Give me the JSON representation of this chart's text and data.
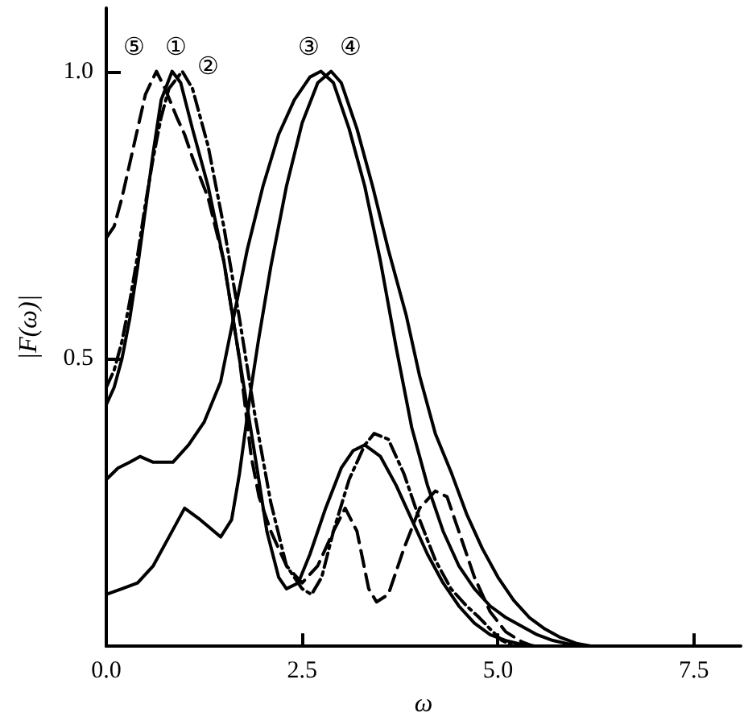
{
  "chart_data": {
    "type": "line",
    "xlabel": "ω",
    "ylabel": "|F(ω)|",
    "xlim": [
      0,
      8.1
    ],
    "xticks": [
      {
        "value": 0,
        "label": "0.0"
      },
      2.5,
      {
        "value": 5,
        "label": "5.0"
      },
      7.5
    ],
    "ylim": [
      0,
      1.11
    ],
    "yticks": [
      0.5,
      {
        "value": 1,
        "label": "1.0"
      }
    ],
    "grid": false,
    "legend": false,
    "marker": "none",
    "series": [
      {
        "name": "①",
        "color": "#000000",
        "line_style": "solid",
        "x": [
          0,
          0.1,
          0.2,
          0.3,
          0.4,
          0.5,
          0.6,
          0.7,
          0.84,
          0.95,
          1.1,
          1.3,
          1.5,
          1.7,
          1.9,
          2.05,
          2.2,
          2.3,
          2.45,
          2.6,
          2.8,
          3.0,
          3.15,
          3.3,
          3.5,
          3.7,
          3.9,
          4.1,
          4.3,
          4.5,
          4.7,
          4.9,
          5.1,
          5.3,
          5.5
        ],
        "values": [
          0.42,
          0.45,
          0.5,
          0.57,
          0.66,
          0.76,
          0.86,
          0.95,
          1.0,
          0.98,
          0.9,
          0.8,
          0.67,
          0.5,
          0.33,
          0.2,
          0.12,
          0.1,
          0.11,
          0.16,
          0.24,
          0.31,
          0.34,
          0.35,
          0.33,
          0.28,
          0.22,
          0.16,
          0.11,
          0.07,
          0.04,
          0.02,
          0.01,
          0.003,
          0
        ]
      },
      {
        "name": "②",
        "color": "#000000",
        "line_style": "dashdot",
        "x": [
          0,
          0.1,
          0.2,
          0.3,
          0.4,
          0.5,
          0.6,
          0.7,
          0.8,
          0.97,
          1.1,
          1.3,
          1.5,
          1.7,
          1.9,
          2.1,
          2.3,
          2.5,
          2.62,
          2.75,
          2.9,
          3.1,
          3.3,
          3.42,
          3.6,
          3.8,
          4.0,
          4.2,
          4.4,
          4.6,
          4.76,
          4.9,
          5.05,
          5.2
        ],
        "values": [
          0.45,
          0.48,
          0.53,
          0.6,
          0.68,
          0.77,
          0.85,
          0.92,
          0.97,
          1.0,
          0.97,
          0.87,
          0.73,
          0.57,
          0.4,
          0.25,
          0.14,
          0.1,
          0.09,
          0.12,
          0.2,
          0.29,
          0.35,
          0.37,
          0.36,
          0.3,
          0.22,
          0.15,
          0.1,
          0.07,
          0.05,
          0.03,
          0.01,
          0
        ]
      },
      {
        "name": "③",
        "color": "#000000",
        "line_style": "solid",
        "x": [
          0,
          0.15,
          0.3,
          0.43,
          0.6,
          0.85,
          1.05,
          1.25,
          1.46,
          1.63,
          1.8,
          2.0,
          2.2,
          2.4,
          2.6,
          2.74,
          2.9,
          3.1,
          3.3,
          3.5,
          3.7,
          3.9,
          4.1,
          4.3,
          4.5,
          4.7,
          4.9,
          5.1,
          5.3,
          5.5,
          5.7,
          5.9,
          6.1
        ],
        "values": [
          0.29,
          0.31,
          0.32,
          0.33,
          0.32,
          0.32,
          0.35,
          0.39,
          0.46,
          0.575,
          0.69,
          0.8,
          0.89,
          0.95,
          0.99,
          1.0,
          0.98,
          0.9,
          0.8,
          0.67,
          0.52,
          0.38,
          0.28,
          0.2,
          0.14,
          0.1,
          0.07,
          0.05,
          0.035,
          0.02,
          0.01,
          0.004,
          0
        ]
      },
      {
        "name": "④",
        "color": "#000000",
        "line_style": "solid",
        "x": [
          0,
          0.2,
          0.4,
          0.6,
          0.8,
          1.0,
          1.2,
          1.46,
          1.6,
          1.7,
          1.85,
          1.94,
          2.1,
          2.3,
          2.5,
          2.7,
          2.87,
          3.0,
          3.2,
          3.4,
          3.6,
          3.83,
          4.0,
          4.2,
          4.41,
          4.6,
          4.8,
          5.0,
          5.2,
          5.4,
          5.6,
          5.8,
          6.0,
          6.2
        ],
        "values": [
          0.09,
          0.1,
          0.11,
          0.14,
          0.19,
          0.24,
          0.22,
          0.19,
          0.22,
          0.3,
          0.45,
          0.53,
          0.66,
          0.8,
          0.91,
          0.98,
          1.0,
          0.98,
          0.9,
          0.8,
          0.69,
          0.575,
          0.47,
          0.37,
          0.3,
          0.23,
          0.17,
          0.12,
          0.08,
          0.05,
          0.03,
          0.015,
          0.005,
          0
        ]
      },
      {
        "name": "⑤",
        "color": "#000000",
        "line_style": "dashed",
        "x": [
          0,
          0.1,
          0.2,
          0.3,
          0.4,
          0.5,
          0.64,
          0.75,
          0.9,
          1.0,
          1.1,
          1.3,
          1.5,
          1.7,
          1.85,
          1.95,
          2.1,
          2.3,
          2.5,
          2.7,
          2.9,
          3.05,
          3.2,
          3.35,
          3.45,
          3.6,
          3.8,
          4.0,
          4.2,
          4.35,
          4.5,
          4.7,
          4.9,
          5.1,
          5.3,
          5.45
        ],
        "values": [
          0.71,
          0.73,
          0.78,
          0.84,
          0.9,
          0.96,
          1.0,
          0.97,
          0.92,
          0.89,
          0.85,
          0.78,
          0.67,
          0.5,
          0.33,
          0.26,
          0.2,
          0.14,
          0.11,
          0.14,
          0.2,
          0.24,
          0.2,
          0.1,
          0.077,
          0.09,
          0.17,
          0.24,
          0.27,
          0.26,
          0.2,
          0.12,
          0.06,
          0.025,
          0.008,
          0
        ]
      }
    ]
  }
}
